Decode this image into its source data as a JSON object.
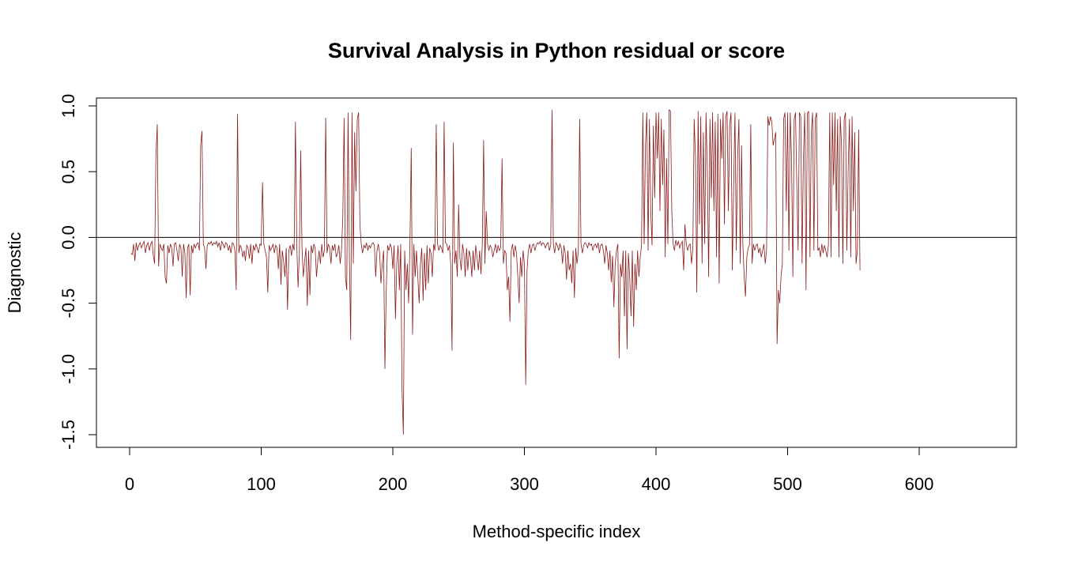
{
  "chart_data": {
    "type": "line",
    "title": "Survival Analysis in Python residual or score",
    "xlabel": "Method-specific index",
    "ylabel": "Diagnostic",
    "xlim": [
      0,
      650
    ],
    "ylim": [
      -1.5,
      1.0
    ],
    "x_ticks": [
      0,
      100,
      200,
      300,
      400,
      500,
      600
    ],
    "y_ticks": [
      -1.5,
      -1.0,
      -0.5,
      0.0,
      0.5,
      1.0
    ],
    "x_tick_labels": [
      "0",
      "100",
      "200",
      "300",
      "400",
      "500",
      "600"
    ],
    "y_tick_labels": [
      "-1.5",
      "-1.0",
      "-0.5",
      "0.0",
      "0.5",
      "1.0"
    ],
    "reference_line_y": 0,
    "grid": false,
    "line_color": "#8B1A1A",
    "series": [
      {
        "values": [
          -0.12,
          -0.13,
          -0.05,
          -0.18,
          -0.04,
          -0.1,
          -0.06,
          -0.04,
          -0.08,
          -0.05,
          -0.03,
          -0.12,
          -0.06,
          -0.04,
          -0.1,
          -0.05,
          -0.03,
          -0.14,
          -0.2,
          0.62,
          0.86,
          -0.22,
          -0.05,
          -0.08,
          -0.1,
          -0.05,
          -0.3,
          -0.35,
          -0.06,
          -0.12,
          -0.05,
          -0.08,
          -0.22,
          -0.05,
          -0.04,
          -0.1,
          -0.18,
          -0.05,
          -0.08,
          -0.3,
          -0.05,
          -0.12,
          -0.46,
          -0.08,
          -0.05,
          -0.44,
          -0.06,
          -0.12,
          -0.05,
          -0.08,
          -0.05,
          -0.04,
          -0.1,
          0.7,
          0.81,
          -0.05,
          -0.08,
          -0.24,
          -0.06,
          -0.04,
          -0.05,
          -0.03,
          -0.06,
          -0.04,
          -0.05,
          -0.03,
          -0.07,
          -0.04,
          -0.1,
          -0.03,
          -0.05,
          -0.08,
          -0.04,
          -0.05,
          -0.1,
          -0.06,
          -0.12,
          -0.04,
          -0.05,
          -0.1,
          -0.4,
          0.94,
          -0.12,
          -0.06,
          -0.08,
          -0.15,
          -0.1,
          -0.18,
          -0.06,
          -0.08,
          -0.16,
          -0.05,
          -0.2,
          -0.06,
          -0.1,
          -0.05,
          -0.08,
          -0.12,
          -0.05,
          -0.06,
          0.42,
          -0.05,
          -0.1,
          -0.15,
          -0.42,
          -0.06,
          -0.1,
          -0.08,
          -0.05,
          -0.12,
          -0.06,
          -0.08,
          -0.24,
          -0.05,
          -0.36,
          -0.1,
          -0.18,
          -0.3,
          -0.08,
          -0.55,
          -0.1,
          -0.06,
          -0.14,
          -0.05,
          -0.1,
          0.88,
          -0.05,
          -0.38,
          -0.12,
          0.66,
          -0.08,
          -0.3,
          -0.18,
          -0.08,
          -0.52,
          -0.1,
          -0.44,
          -0.06,
          -0.12,
          -0.05,
          -0.08,
          -0.3,
          -0.18,
          -0.1,
          -0.2,
          -0.05,
          -0.15,
          -0.1,
          0.91,
          -0.12,
          -0.05,
          -0.08,
          -0.2,
          -0.06,
          -0.1,
          -0.05,
          -0.15,
          -0.12,
          -0.06,
          -0.2,
          -0.1,
          0.15,
          0.91,
          -0.3,
          -0.4,
          0.95,
          -0.15,
          -0.78,
          0.95,
          -0.2,
          0.8,
          0.35,
          0.9,
          0.95,
          0.1,
          -0.05,
          -0.12,
          -0.06,
          -0.08,
          -0.04,
          -0.1,
          -0.06,
          -0.08,
          -0.05,
          -0.04,
          -0.06,
          -0.3,
          -0.1,
          -0.05,
          -0.12,
          -0.35,
          -0.2,
          -0.1,
          -1.0,
          -0.4,
          -0.06,
          -0.1,
          -0.05,
          -0.08,
          -0.24,
          -0.06,
          -0.62,
          -0.2,
          -0.06,
          -0.4,
          -0.05,
          -1.15,
          -1.5,
          -0.1,
          -0.4,
          -0.2,
          -0.5,
          -0.06,
          0.68,
          -0.74,
          -0.05,
          -0.3,
          -0.1,
          -0.3,
          -0.5,
          -0.2,
          -0.08,
          -0.48,
          -0.12,
          -0.4,
          -0.06,
          -0.35,
          -0.08,
          -0.12,
          -0.3,
          -0.05,
          -0.1,
          0.86,
          -0.05,
          -0.1,
          -0.06,
          -0.08,
          -0.12,
          0.88,
          -0.04,
          -0.05,
          -0.1,
          -0.06,
          -0.2,
          -0.86,
          0.72,
          -0.2,
          -0.1,
          -0.3,
          0.25,
          -0.15,
          -0.25,
          -0.05,
          -0.12,
          -0.3,
          -0.08,
          -0.25,
          -0.1,
          -0.15,
          -0.3,
          -0.1,
          -0.25,
          -0.06,
          -0.15,
          -0.25,
          -0.1,
          -0.28,
          -0.05,
          0.74,
          -0.2,
          0.2,
          -0.05,
          -0.1,
          -0.06,
          -0.08,
          -0.15,
          -0.1,
          -0.05,
          -0.12,
          -0.06,
          -0.1,
          -0.08,
          0.6,
          -0.2,
          -0.1,
          -0.12,
          -0.4,
          -0.3,
          -0.64,
          -0.1,
          -0.05,
          -0.15,
          -0.06,
          -0.12,
          -0.3,
          -0.5,
          -0.15,
          -0.3,
          -0.1,
          -0.2,
          -1.12,
          -0.25,
          -0.1,
          -0.05,
          -0.12,
          -0.06,
          -0.05,
          -0.1,
          -0.06,
          -0.04,
          -0.05,
          -0.03,
          -0.06,
          -0.04,
          -0.05,
          -0.08,
          -0.05,
          -0.04,
          -0.1,
          -0.06,
          0.97,
          -0.05,
          -0.12,
          -0.04,
          -0.06,
          -0.1,
          -0.05,
          -0.08,
          -0.2,
          -0.06,
          -0.12,
          -0.32,
          -0.1,
          -0.25,
          -0.2,
          -0.35,
          -0.1,
          -0.46,
          -0.08,
          -0.2,
          -0.1,
          0.9,
          -0.05,
          -0.12,
          -0.06,
          -0.04,
          -0.05,
          -0.08,
          -0.04,
          -0.06,
          -0.05,
          -0.1,
          -0.06,
          -0.05,
          -0.08,
          -0.04,
          -0.12,
          -0.06,
          -0.05,
          -0.1,
          -0.2,
          -0.06,
          -0.12,
          -0.25,
          -0.1,
          -0.34,
          -0.14,
          -0.53,
          -0.2,
          -0.1,
          -0.05,
          -0.92,
          -0.2,
          -0.3,
          -0.1,
          -0.6,
          -0.1,
          -0.85,
          -0.12,
          -0.3,
          -0.6,
          -0.1,
          -0.68,
          -0.2,
          -0.4,
          -0.1,
          -0.3,
          -0.15,
          -0.06,
          0.95,
          -0.05,
          0.7,
          0.95,
          -0.1,
          0.9,
          0.2,
          -0.06,
          0.85,
          0.3,
          0.95,
          0.6,
          0.95,
          0.2,
          0.9,
          0.4,
          0.82,
          -0.15,
          0.6,
          -0.05,
          0.97,
          0.96,
          0.2,
          -0.05,
          -0.1,
          -0.02,
          -0.06,
          -0.03,
          -0.08,
          -0.05,
          -0.03,
          -0.25,
          0.1,
          -0.05,
          -0.1,
          -0.06,
          -0.05,
          -0.2,
          -0.08,
          0.9,
          0.6,
          -0.42,
          0.96,
          0.1,
          0.92,
          -0.2,
          0.8,
          -0.05,
          0.95,
          0.5,
          -0.3,
          0.9,
          0.3,
          0.95,
          0.2,
          0.88,
          -0.15,
          0.94,
          -0.35,
          0.9,
          0.6,
          0.95,
          0.1,
          0.92,
          0.96,
          0.2,
          0.85,
          0.95,
          -0.25,
          0.4,
          0.95,
          -0.1,
          0.6,
          0.9,
          -0.2,
          0.7,
          -0.05,
          -0.3,
          -0.45,
          -0.15,
          -0.08,
          -0.06,
          0.86,
          -0.2,
          -0.05,
          -0.1,
          -0.06,
          -0.05,
          -0.12,
          -0.08,
          -0.15,
          -0.1,
          -0.05,
          -0.2,
          -0.1,
          0.92,
          0.85,
          0.92,
          0.88,
          0.7,
          0.75,
          0.8,
          -0.81,
          -0.4,
          -0.5,
          -0.3,
          -0.2,
          0.9,
          0.95,
          0.2,
          0.95,
          -0.1,
          0.95,
          0.6,
          -0.3,
          0.9,
          0.95,
          0.4,
          -0.1,
          0.95,
          0.92,
          -0.2,
          0.6,
          0.95,
          -0.4,
          0.94,
          0.96,
          -0.15,
          0.8,
          0.95,
          -0.1,
          0.9,
          0.95,
          -0.1,
          -0.08,
          -0.15,
          -0.05,
          -0.12,
          -0.06,
          -0.1,
          -0.15,
          -0.06,
          0.95,
          -0.15,
          0.95,
          0.4,
          0.95,
          0.2,
          0.9,
          -0.15,
          0.92,
          0.7,
          -0.2,
          0.9,
          0.95,
          -0.1,
          0.5,
          0.9,
          -0.15,
          0.92,
          0.2,
          0.8,
          -0.2,
          -0.1,
          0.82,
          -0.25
        ]
      }
    ]
  }
}
